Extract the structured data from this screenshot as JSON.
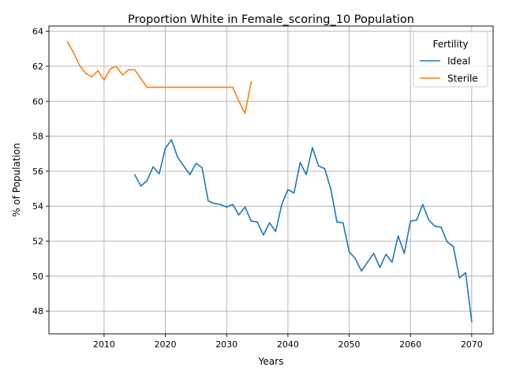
{
  "chart_data": {
    "type": "line",
    "title": "Proportion White in Female_scoring_10 Population",
    "xlabel": "Years",
    "ylabel": "% of Population",
    "xlim": [
      2001,
      2073.5
    ],
    "ylim": [
      46.7,
      64.3
    ],
    "xticks": [
      2010,
      2020,
      2030,
      2040,
      2050,
      2060,
      2070
    ],
    "yticks": [
      48,
      50,
      52,
      54,
      56,
      58,
      60,
      62,
      64
    ],
    "grid": true,
    "legend": {
      "title": "Fertility",
      "placement": "top-right"
    },
    "series": [
      {
        "name": "Ideal",
        "color": "#1f77b4",
        "x": [
          2015,
          2016,
          2017,
          2018,
          2019,
          2020,
          2021,
          2022,
          2023,
          2024,
          2025,
          2026,
          2027,
          2028,
          2029,
          2030,
          2031,
          2032,
          2033,
          2034,
          2035,
          2036,
          2037,
          2038,
          2039,
          2040,
          2041,
          2042,
          2043,
          2044,
          2045,
          2046,
          2047,
          2048,
          2049,
          2050,
          2051,
          2052,
          2053,
          2054,
          2055,
          2056,
          2057,
          2058,
          2059,
          2060,
          2061,
          2062,
          2063,
          2064,
          2065,
          2066,
          2067,
          2068,
          2069,
          2070
        ],
        "y": [
          55.8,
          55.15,
          55.45,
          56.25,
          55.85,
          57.3,
          57.8,
          56.8,
          56.3,
          55.8,
          56.45,
          56.2,
          54.3,
          54.15,
          54.1,
          53.95,
          54.1,
          53.5,
          53.95,
          53.15,
          53.1,
          52.35,
          53.05,
          52.55,
          54.1,
          54.95,
          54.75,
          56.5,
          55.8,
          57.35,
          56.3,
          56.15,
          55.0,
          53.1,
          53.05,
          51.4,
          51.0,
          50.3,
          50.8,
          51.3,
          50.5,
          51.25,
          50.8,
          52.3,
          51.3,
          53.15,
          53.2,
          54.1,
          53.2,
          52.85,
          52.8,
          51.95,
          51.7,
          49.9,
          50.2,
          47.4
        ]
      },
      {
        "name": "Sterile",
        "color": "#ff7f0e",
        "x": [
          2004,
          2005,
          2006,
          2007,
          2008,
          2009,
          2010,
          2011,
          2012,
          2013,
          2014,
          2015,
          2016,
          2017,
          2018,
          2019,
          2020,
          2021,
          2022,
          2023,
          2024,
          2025,
          2026,
          2027,
          2028,
          2029,
          2030,
          2031,
          2032,
          2033,
          2034
        ],
        "y": [
          63.4,
          62.8,
          62.05,
          61.6,
          61.4,
          61.75,
          61.2,
          61.85,
          62.0,
          61.5,
          61.8,
          61.8,
          61.3,
          60.8,
          60.8,
          60.8,
          60.8,
          60.8,
          60.8,
          60.8,
          60.8,
          60.8,
          60.8,
          60.8,
          60.8,
          60.8,
          60.8,
          60.8,
          60.0,
          59.3,
          61.1
        ]
      }
    ]
  }
}
